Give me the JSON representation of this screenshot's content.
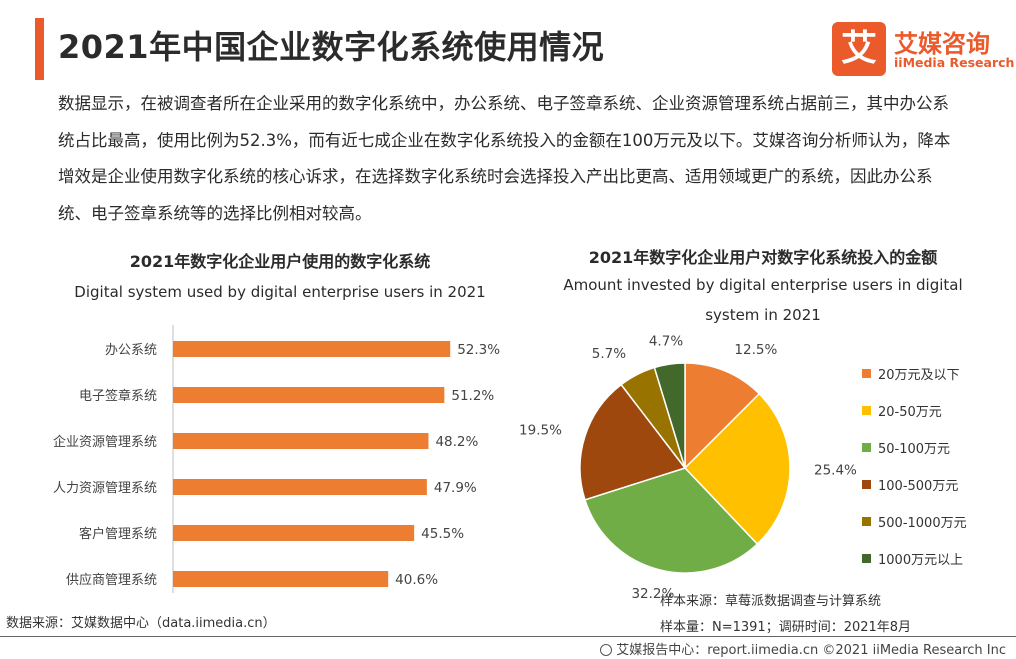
{
  "header": {
    "title": "2021年中国企业数字化系统使用情况",
    "logo_mark": "艾",
    "logo_cn": "艾媒咨询",
    "logo_en": "iiMedia Research"
  },
  "summary": "数据显示，在被调查者所在企业采用的数字化系统中，办公系统、电子签章系统、企业资源管理系统占据前三，其中办公系统占比最高，使用比例为52.3%，而有近七成企业在数字化系统投入的金额在100万元及以下。艾媒咨询分析师认为，降本增效是企业使用数字化系统的核心诉求，在选择数字化系统时会选择投入产出比更高、适用领域更广的系统，因此办公系统、电子签章系统等的选择比例相对较高。",
  "chart_data": [
    {
      "type": "bar",
      "orientation": "horizontal",
      "title": "2021年数字化企业用户使用的数字化系统",
      "subtitle": "Digital system used by digital enterprise users in 2021",
      "categories": [
        "办公系统",
        "电子签章系统",
        "企业资源管理系统",
        "人力资源管理系统",
        "客户管理系统",
        "供应商管理系统"
      ],
      "values": [
        52.3,
        51.2,
        48.2,
        47.9,
        45.5,
        40.6
      ],
      "value_labels": [
        "52.3%",
        "51.2%",
        "48.2%",
        "47.9%",
        "45.5%",
        "40.6%"
      ],
      "unit": "%",
      "color": "#ed7d31"
    },
    {
      "type": "pie",
      "title": "2021年数字化企业用户对数字化系统投入的金额",
      "subtitle": "Amount invested by digital enterprise users in digital system in 2021",
      "slices": [
        {
          "label": "20万元及以下",
          "value": 12.5,
          "value_label": "12.5%",
          "color": "#ed7d31"
        },
        {
          "label": "20-50万元",
          "value": 25.4,
          "value_label": "25.4%",
          "color": "#ffc000"
        },
        {
          "label": "50-100万元",
          "value": 32.2,
          "value_label": "32.2%",
          "color": "#70ad47"
        },
        {
          "label": "100-500万元",
          "value": 19.5,
          "value_label": "19.5%",
          "color": "#9e480e"
        },
        {
          "label": "500-1000万元",
          "value": 5.7,
          "value_label": "5.7%",
          "color": "#997300"
        },
        {
          "label": "1000万元以上",
          "value": 4.7,
          "value_label": "4.7%",
          "color": "#43682b"
        }
      ],
      "legend_position": "right"
    }
  ],
  "sources": {
    "left": "数据来源：艾媒数据中心（data.iimedia.cn）",
    "sample_source": "样本来源：草莓派数据调查与计算系统",
    "sample_size": "样本量：N=1391；调研时间：2021年8月"
  },
  "footer": {
    "text": "艾媒报告中心：report.iimedia.cn  ©2021  iiMedia Research  Inc",
    "icon": "globe-icon"
  }
}
